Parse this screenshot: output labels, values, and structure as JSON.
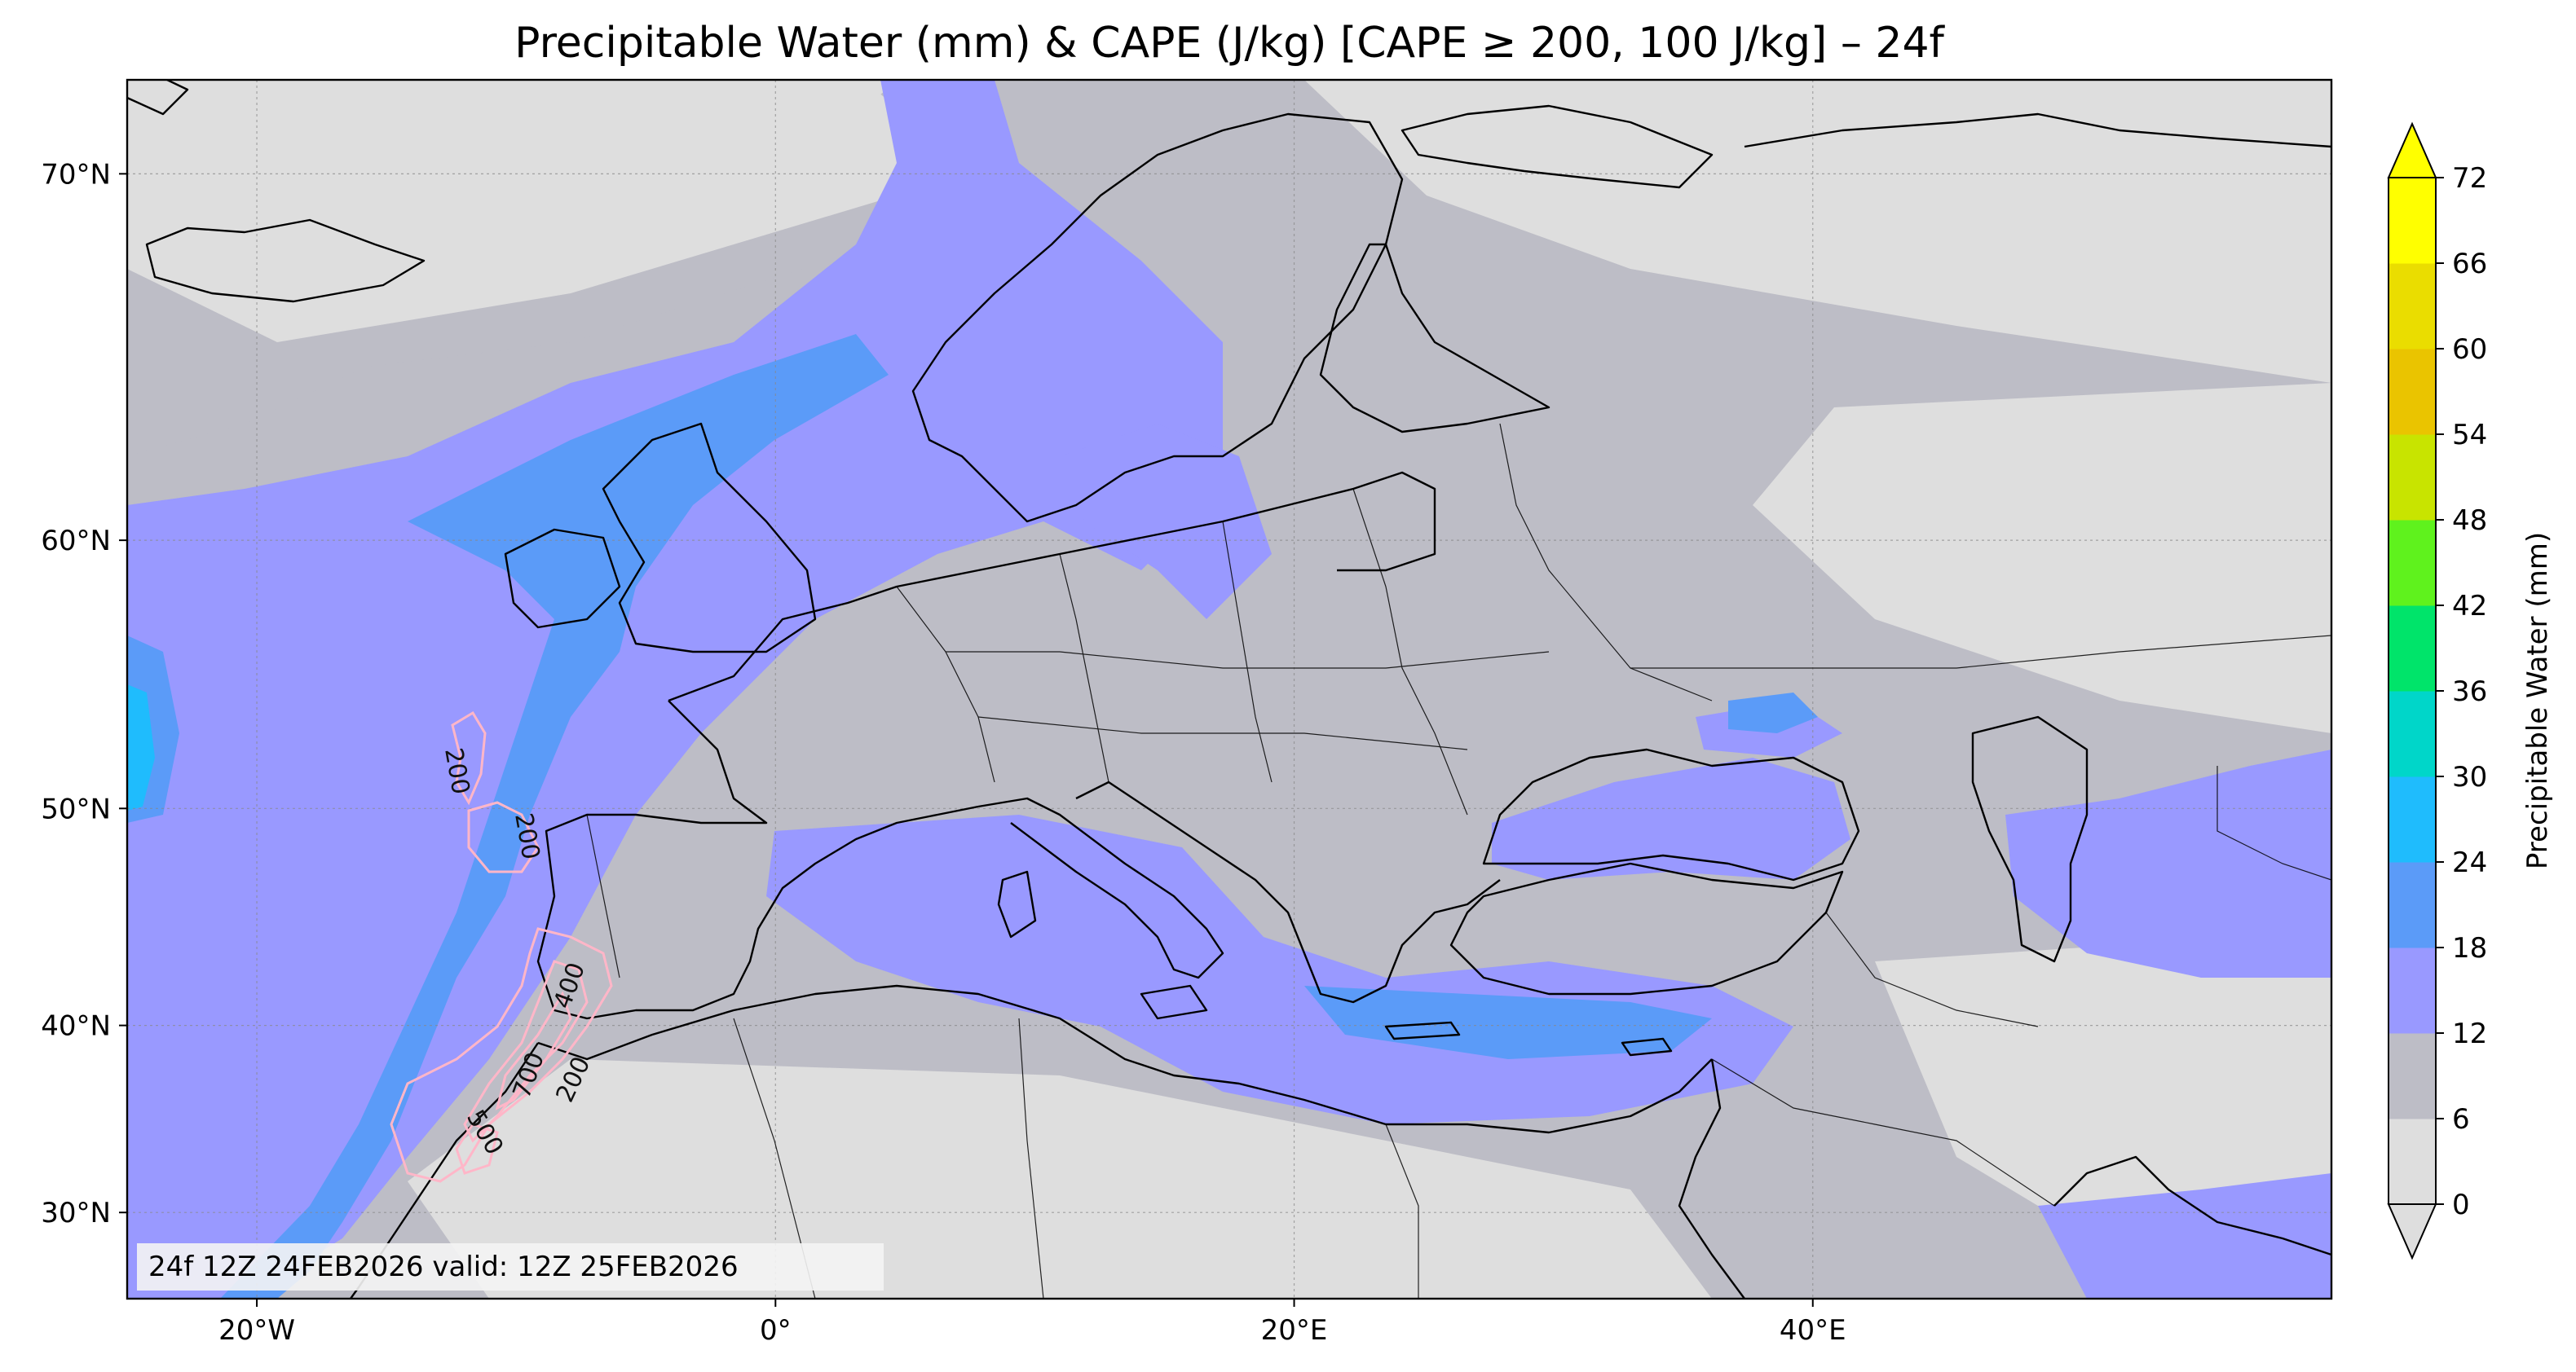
{
  "title": "Precipitable Water (mm) & CAPE (J/kg) [CAPE ≥ 200, 100 J/kg] – 24f",
  "info_box": "24f 12Z 24FEB2026 valid: 12Z 25FEB2026",
  "map": {
    "lon_range": [
      -25,
      60
    ],
    "lat_range": [
      25,
      72
    ],
    "lat_ticks": [
      {
        "value": 70,
        "label": "70°N"
      },
      {
        "value": 60,
        "label": "60°N"
      },
      {
        "value": 50,
        "label": "50°N"
      },
      {
        "value": 40,
        "label": "40°N"
      },
      {
        "value": 30,
        "label": "30°N"
      }
    ],
    "lon_ticks": [
      {
        "value": -20,
        "label": "20°W"
      },
      {
        "value": 0,
        "label": "0°"
      },
      {
        "value": 20,
        "label": "20°E"
      },
      {
        "value": 40,
        "label": "40°E"
      }
    ],
    "gridlines": true,
    "fields": {
      "precipitable_water": "filled contours",
      "cape": "pink line contours"
    },
    "cape_contour_labels": [
      "200",
      "200",
      "400",
      "700",
      "200",
      "500"
    ]
  },
  "colorbar": {
    "label": "Precipitable Water (mm)",
    "levels": [
      0,
      6,
      12,
      18,
      24,
      30,
      36,
      42,
      48,
      54,
      60,
      66,
      72
    ],
    "colors": [
      "#dedede",
      "#bdbdc6",
      "#9999ff",
      "#5b9bf8",
      "#1fbcfd",
      "#00d6c9",
      "#00e46a",
      "#5ff21d",
      "#c8e400",
      "#eac400",
      "#eadd00",
      "#ffff00"
    ],
    "extend": "both"
  }
}
